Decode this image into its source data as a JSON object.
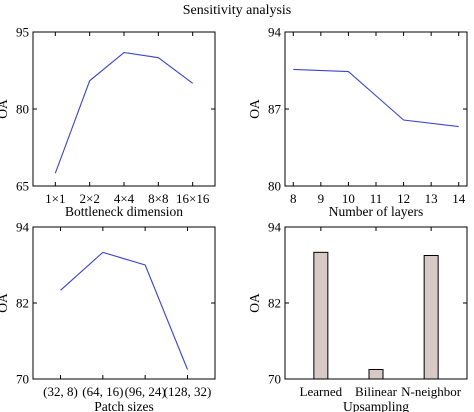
{
  "figure_title": "Sensitivity analysis",
  "colors": {
    "line": "#3b45c9",
    "bar_fill": "#d7c9c6",
    "axis": "#000000"
  },
  "chart_data": [
    {
      "type": "line",
      "categories": [
        "1×1",
        "2×2",
        "4×4",
        "8×8",
        "16×16"
      ],
      "values": [
        67.5,
        85.5,
        91.0,
        90.0,
        85.0
      ],
      "title": "",
      "xlabel": "Bottleneck dimension",
      "ylabel": "OA",
      "ylim": [
        65,
        95
      ],
      "yticks": [
        "65",
        "80",
        "95"
      ],
      "ytick_values": [
        65,
        80,
        95
      ],
      "grid": false
    },
    {
      "type": "line",
      "x": [
        8,
        9,
        10,
        11,
        12,
        13,
        14
      ],
      "x_numeric": true,
      "xlim": [
        7.7,
        14.3
      ],
      "xticks": [
        "8",
        "9",
        "10",
        "11",
        "12",
        "13",
        "14"
      ],
      "xtick_values": [
        8,
        9,
        10,
        11,
        12,
        13,
        14
      ],
      "points": [
        [
          8,
          90.6
        ],
        [
          10,
          90.4
        ],
        [
          12,
          86.0
        ],
        [
          14,
          85.4
        ]
      ],
      "title": "",
      "xlabel": "Number of layers",
      "ylabel": "OA",
      "ylim": [
        80,
        94
      ],
      "yticks": [
        "80",
        "87",
        "94"
      ],
      "ytick_values": [
        80,
        87,
        94
      ],
      "grid": false
    },
    {
      "type": "line",
      "categories": [
        "(32, 8)",
        "(64, 16)",
        "(96, 24)",
        "(128, 32)"
      ],
      "values": [
        84.0,
        90.0,
        88.0,
        71.5
      ],
      "title": "",
      "xlabel": "Patch sizes",
      "ylabel": "OA",
      "ylim": [
        70,
        94
      ],
      "yticks": [
        "70",
        "82",
        "94"
      ],
      "ytick_values": [
        70,
        82,
        94
      ],
      "grid": false
    },
    {
      "type": "bar",
      "categories": [
        "Learned",
        "Bilinear",
        "N-neighbor"
      ],
      "values": [
        90.0,
        71.5,
        89.5
      ],
      "title": "",
      "xlabel": "Upsampling",
      "ylabel": "OA",
      "ylim": [
        70,
        94
      ],
      "yticks": [
        "70",
        "82",
        "94"
      ],
      "ytick_values": [
        70,
        82,
        94
      ],
      "grid": false
    }
  ]
}
